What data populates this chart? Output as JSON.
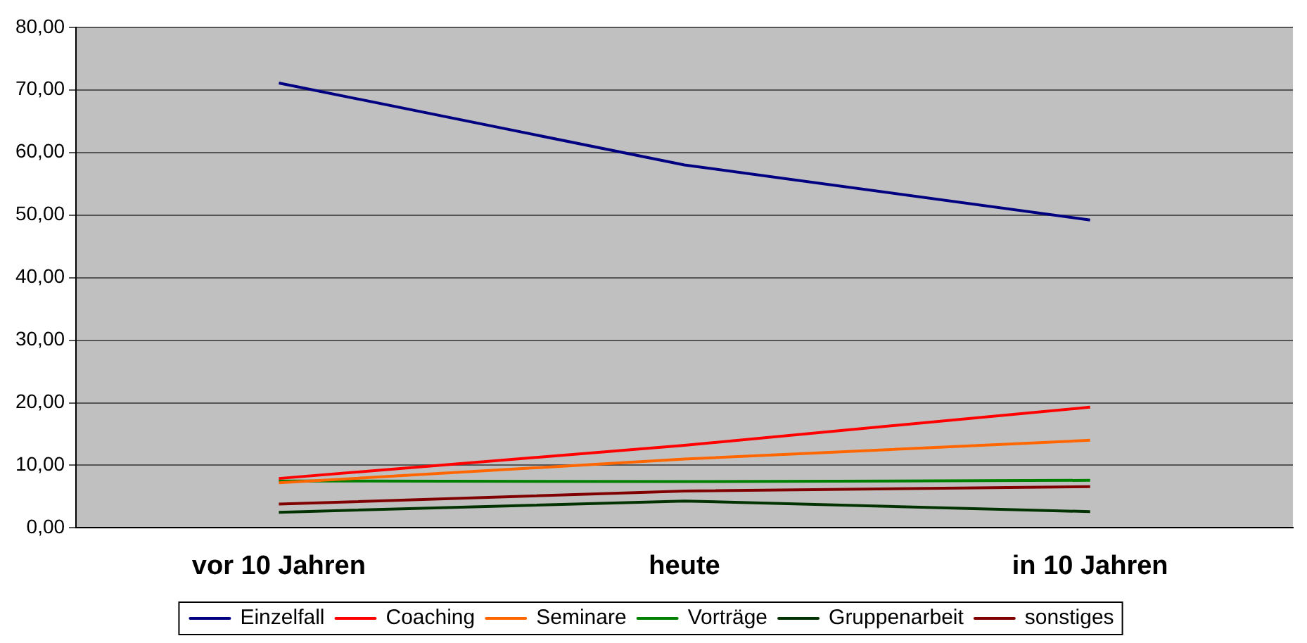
{
  "chart_data": {
    "type": "line",
    "categories": [
      "vor 10 Jahren",
      "heute",
      "in 10 Jahren"
    ],
    "series": [
      {
        "name": "Einzelfall",
        "color": "#000080",
        "values": [
          71.1,
          58.0,
          49.2
        ]
      },
      {
        "name": "Coaching",
        "color": "#ff0000",
        "values": [
          7.9,
          13.2,
          19.3
        ]
      },
      {
        "name": "Seminare",
        "color": "#ff6600",
        "values": [
          7.2,
          11.0,
          14.0
        ]
      },
      {
        "name": "Vorträge",
        "color": "#008000",
        "values": [
          7.5,
          7.4,
          7.6
        ]
      },
      {
        "name": "Gruppenarbeit",
        "color": "#003300",
        "values": [
          2.5,
          4.3,
          2.6
        ]
      },
      {
        "name": "sonstiges",
        "color": "#800000",
        "values": [
          3.8,
          5.9,
          6.6
        ]
      }
    ],
    "ylim": [
      0,
      80
    ],
    "yticks": [
      {
        "value": 0,
        "label": "0,00"
      },
      {
        "value": 10,
        "label": "10,00"
      },
      {
        "value": 20,
        "label": "20,00"
      },
      {
        "value": 30,
        "label": "30,00"
      },
      {
        "value": 40,
        "label": "40,00"
      },
      {
        "value": 50,
        "label": "50,00"
      },
      {
        "value": 60,
        "label": "60,00"
      },
      {
        "value": 70,
        "label": "70,00"
      },
      {
        "value": 80,
        "label": "80,00"
      }
    ],
    "grid": "y",
    "legend": "bottom",
    "marker": "none",
    "line_style": "solid"
  }
}
